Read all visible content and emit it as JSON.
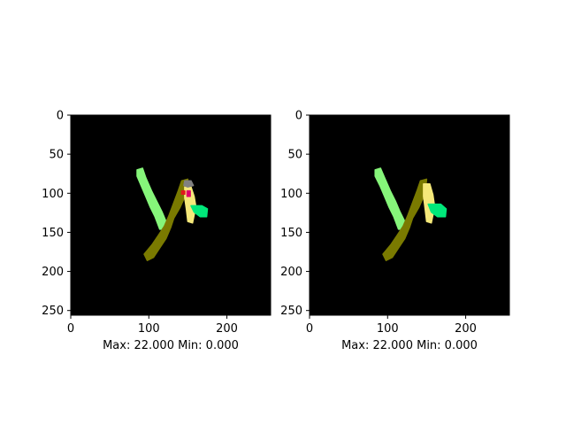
{
  "chart_data": [
    {
      "type": "heatmap",
      "panel": "left",
      "title": "",
      "xlabel": "Max: 22.000 Min: 0.000",
      "ylabel": "",
      "xlim": [
        0,
        256
      ],
      "ylim": [
        256,
        0
      ],
      "xticks": [
        0,
        100,
        200
      ],
      "yticks": [
        0,
        50,
        100,
        150,
        200,
        250
      ],
      "background": "#000000",
      "grid": false,
      "segments": [
        {
          "label_value": "light-green",
          "color": "#86f57a",
          "outline": [
            [
              85,
              70
            ],
            [
              92,
              68
            ],
            [
              96,
              80
            ],
            [
              104,
              98
            ],
            [
              110,
              110
            ],
            [
              117,
              124
            ],
            [
              122,
              136
            ],
            [
              120,
              146
            ],
            [
              114,
              146
            ],
            [
              108,
              130
            ],
            [
              102,
              118
            ],
            [
              96,
              104
            ],
            [
              90,
              90
            ],
            [
              85,
              78
            ]
          ]
        },
        {
          "label_value": "olive",
          "color": "#7a7a00",
          "outline": [
            [
              142,
              84
            ],
            [
              150,
              82
            ],
            [
              148,
              100
            ],
            [
              140,
              118
            ],
            [
              132,
              132
            ],
            [
              128,
              144
            ],
            [
              122,
              158
            ],
            [
              114,
              170
            ],
            [
              106,
              182
            ],
            [
              98,
              186
            ],
            [
              94,
              178
            ],
            [
              104,
              166
            ],
            [
              112,
              154
            ],
            [
              120,
              142
            ],
            [
              126,
              128
            ],
            [
              132,
              112
            ],
            [
              138,
              96
            ]
          ]
        },
        {
          "label_value": "yellow",
          "color": "#f5e87a",
          "outline": [
            [
              146,
              92
            ],
            [
              154,
              92
            ],
            [
              158,
              104
            ],
            [
              160,
              116
            ],
            [
              158,
              128
            ],
            [
              156,
              138
            ],
            [
              150,
              136
            ],
            [
              148,
              120
            ],
            [
              146,
              106
            ]
          ]
        },
        {
          "label_value": "spring-green",
          "color": "#00e87a",
          "outline": [
            [
              154,
              116
            ],
            [
              168,
              116
            ],
            [
              175,
              120
            ],
            [
              174,
              130
            ],
            [
              166,
              130
            ],
            [
              158,
              124
            ]
          ]
        },
        {
          "label_value": "grey",
          "color": "#808080",
          "outline": [
            [
              146,
              84
            ],
            [
              154,
              84
            ],
            [
              157,
              90
            ],
            [
              150,
              92
            ],
            [
              145,
              90
            ]
          ]
        },
        {
          "label_value": "magenta",
          "color": "#e0006a",
          "outline": [
            [
              149,
              97
            ],
            [
              153,
              97
            ],
            [
              153,
              104
            ],
            [
              149,
              104
            ]
          ]
        },
        {
          "label_value": "red",
          "color": "#e01a1a",
          "outline": [
            [
              142,
              97
            ],
            [
              146,
              97
            ],
            [
              146,
              101
            ],
            [
              142,
              101
            ]
          ]
        }
      ]
    },
    {
      "type": "heatmap",
      "panel": "right",
      "title": "",
      "xlabel": "Max: 22.000 Min: 0.000",
      "ylabel": "",
      "xlim": [
        0,
        256
      ],
      "ylim": [
        256,
        0
      ],
      "xticks": [
        0,
        100,
        200
      ],
      "yticks": [
        0,
        50,
        100,
        150,
        200,
        250
      ],
      "background": "#000000",
      "grid": false,
      "segments": [
        {
          "label_value": "light-green",
          "color": "#86f57a",
          "outline": [
            [
              84,
              70
            ],
            [
              91,
              68
            ],
            [
              96,
              80
            ],
            [
              104,
              98
            ],
            [
              110,
              110
            ],
            [
              116,
              124
            ],
            [
              122,
              136
            ],
            [
              120,
              146
            ],
            [
              114,
              146
            ],
            [
              108,
              130
            ],
            [
              102,
              118
            ],
            [
              96,
              104
            ],
            [
              90,
              90
            ],
            [
              84,
              78
            ]
          ]
        },
        {
          "label_value": "olive",
          "color": "#7a7a00",
          "outline": [
            [
              142,
              84
            ],
            [
              150,
              82
            ],
            [
              148,
              100
            ],
            [
              140,
              118
            ],
            [
              132,
              132
            ],
            [
              128,
              144
            ],
            [
              122,
              158
            ],
            [
              114,
              170
            ],
            [
              106,
              182
            ],
            [
              98,
              186
            ],
            [
              94,
              178
            ],
            [
              104,
              166
            ],
            [
              112,
              154
            ],
            [
              120,
              142
            ],
            [
              126,
              128
            ],
            [
              132,
              112
            ],
            [
              138,
              96
            ]
          ]
        },
        {
          "label_value": "yellow",
          "color": "#f5e87a",
          "outline": [
            [
              146,
              88
            ],
            [
              154,
              88
            ],
            [
              158,
              102
            ],
            [
              160,
              116
            ],
            [
              158,
              128
            ],
            [
              156,
              138
            ],
            [
              150,
              136
            ],
            [
              148,
              120
            ],
            [
              146,
              104
            ]
          ]
        },
        {
          "label_value": "spring-green",
          "color": "#00e87a",
          "outline": [
            [
              152,
              114
            ],
            [
              168,
              114
            ],
            [
              175,
              120
            ],
            [
              174,
              130
            ],
            [
              164,
              130
            ],
            [
              156,
              124
            ]
          ]
        }
      ]
    }
  ]
}
